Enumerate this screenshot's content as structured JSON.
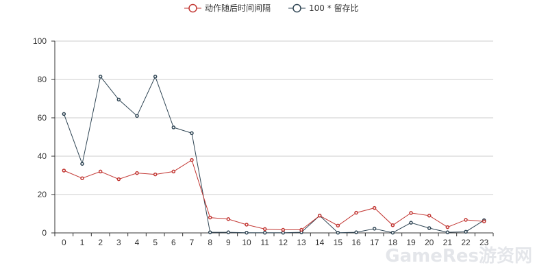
{
  "chart_data": {
    "type": "line",
    "x": [
      "0",
      "1",
      "2",
      "3",
      "4",
      "5",
      "6",
      "7",
      "8",
      "9",
      "10",
      "11",
      "12",
      "13",
      "14",
      "15",
      "16",
      "17",
      "18",
      "19",
      "20",
      "21",
      "22",
      "23"
    ],
    "ylim": [
      0,
      100
    ],
    "yticks": [
      0,
      20,
      40,
      60,
      80,
      100
    ],
    "grid": true,
    "legend_position": "top-center",
    "series": [
      {
        "name": "动作随后时间间隔",
        "color": "#c23531",
        "values": [
          32.5,
          28.5,
          32,
          28,
          31.2,
          30.5,
          32,
          38,
          8,
          7.2,
          4.3,
          2,
          1.6,
          1.6,
          9,
          3.8,
          10.5,
          13,
          4,
          10.4,
          9,
          3,
          6.8,
          6
        ]
      },
      {
        "name": "100 * 留存比",
        "color": "#2f4554",
        "values": [
          62,
          36,
          81.5,
          69.5,
          61,
          81.5,
          55,
          52,
          0.3,
          0.3,
          0.1,
          0.1,
          0.1,
          0.3,
          9,
          0.1,
          0.3,
          2.2,
          0.1,
          5.3,
          2.5,
          0.3,
          0.6,
          6.6
        ]
      }
    ]
  },
  "watermark": {
    "text": "GameRes游资网"
  }
}
